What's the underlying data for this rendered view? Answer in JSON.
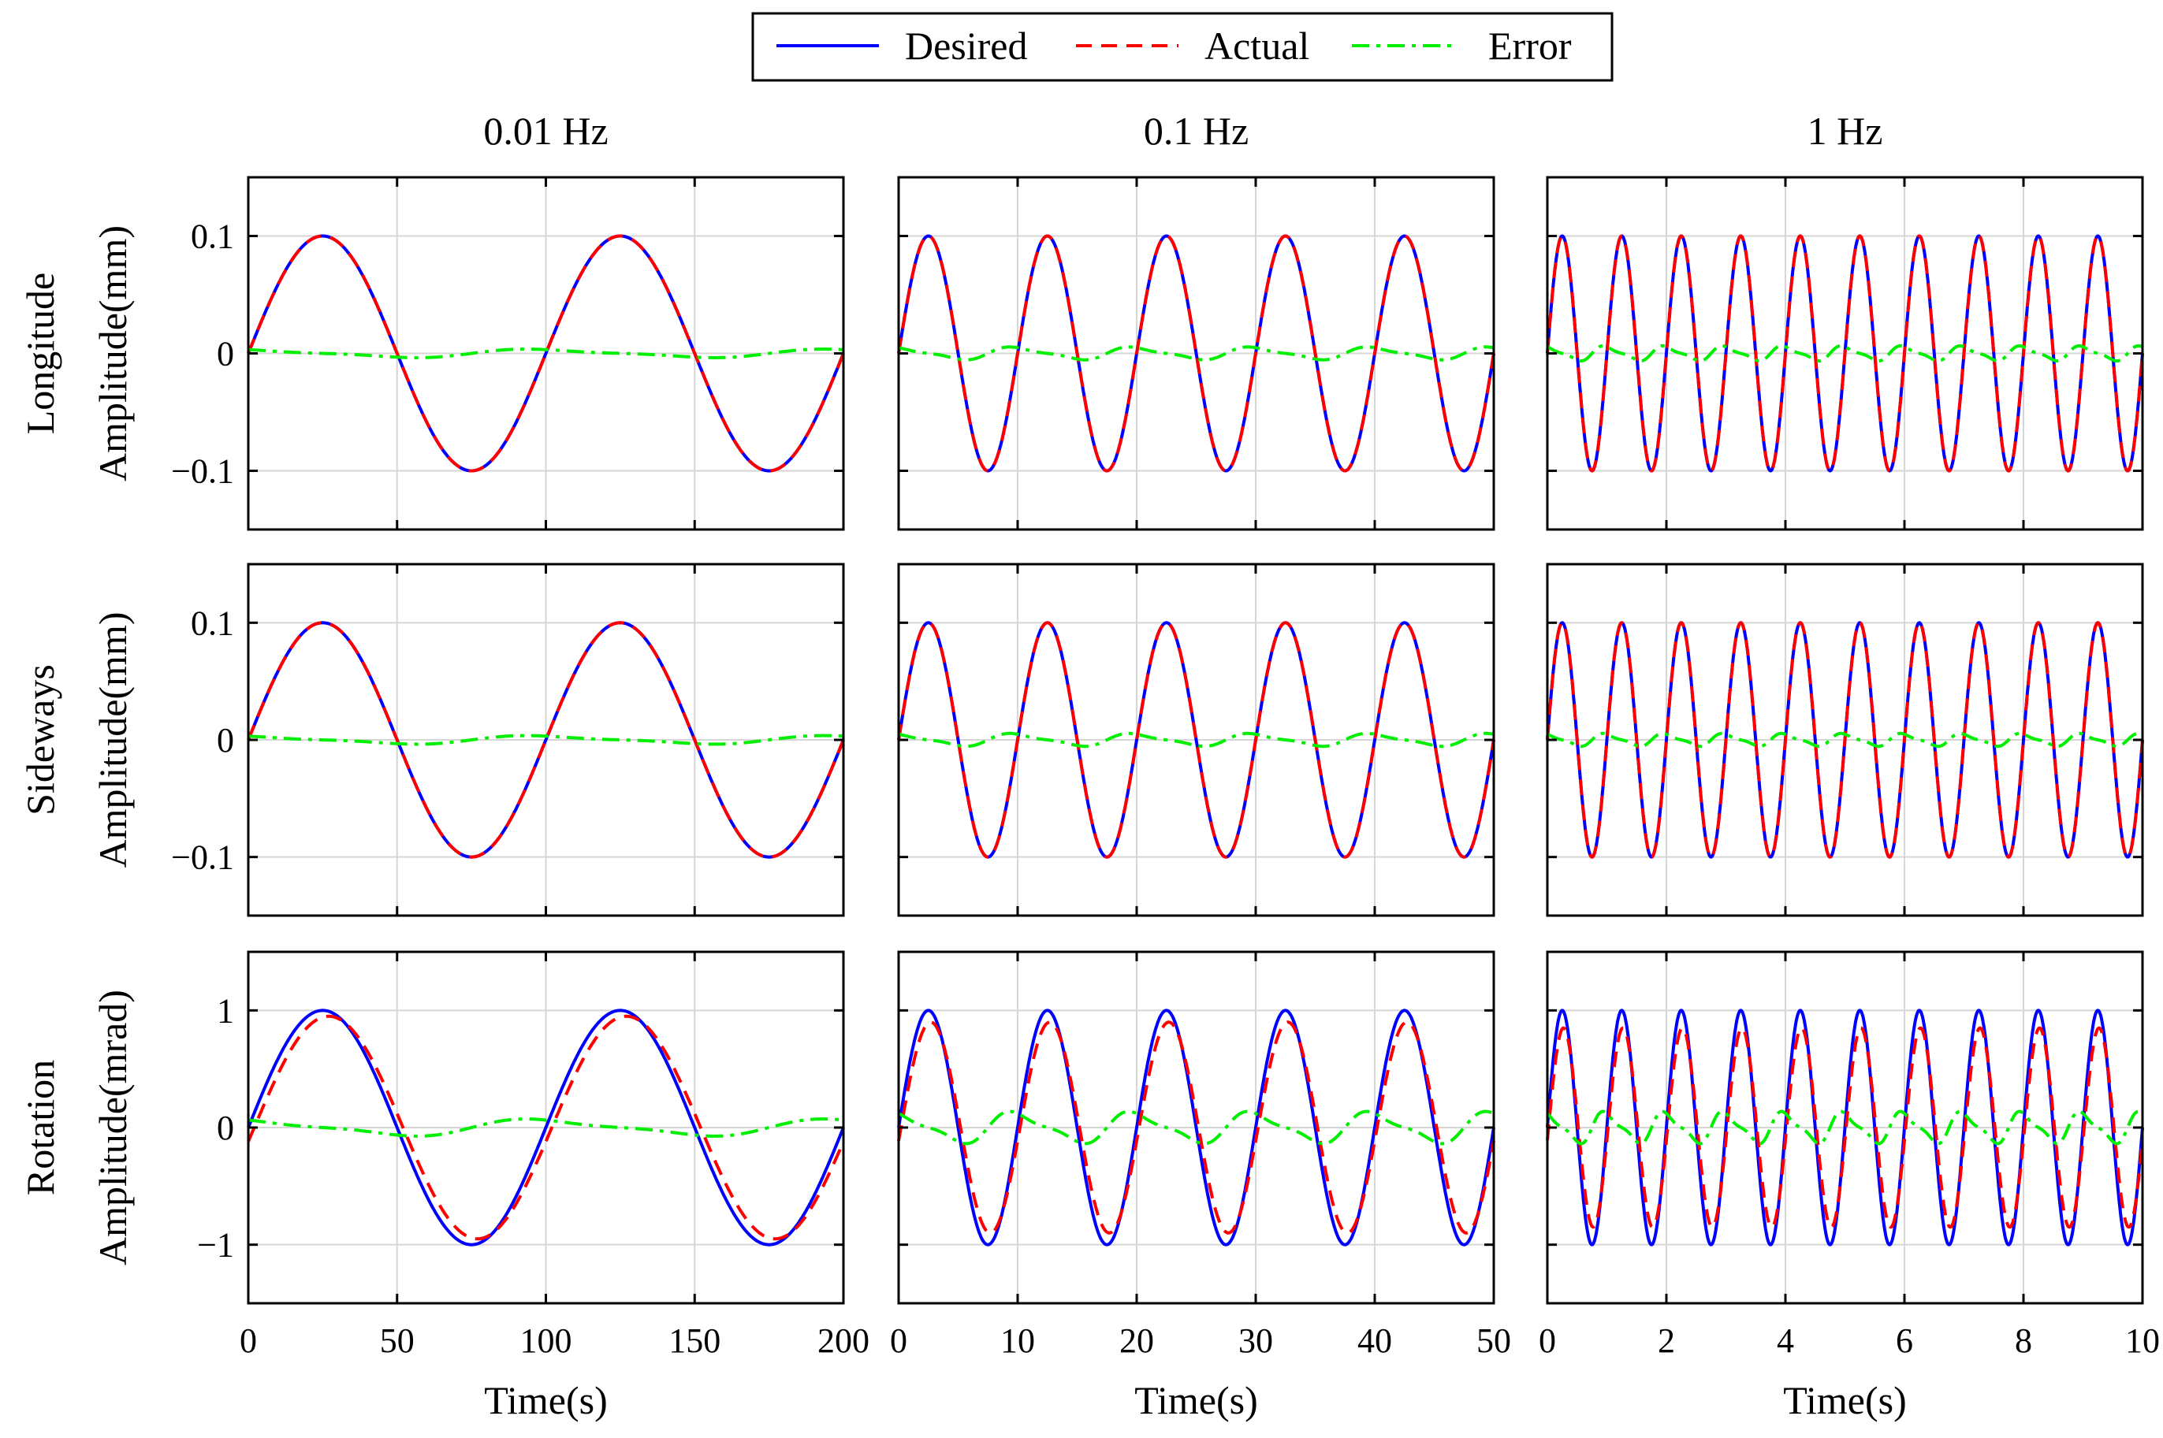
{
  "legend": {
    "items": [
      {
        "label": "Desired",
        "color": "#0000ff",
        "style": "solid"
      },
      {
        "label": "Actual",
        "color": "#ff0000",
        "style": "dashed"
      },
      {
        "label": "Error",
        "color": "#00ee00",
        "style": "dashdot"
      }
    ]
  },
  "chart_data": {
    "type": "line",
    "columns": [
      {
        "title": "0.01 Hz",
        "freq_hz": 0.01,
        "xlim": [
          0,
          200
        ],
        "xticks": [
          0,
          50,
          100,
          150,
          200
        ],
        "xlabel": "Time(s)"
      },
      {
        "title": "0.1 Hz",
        "freq_hz": 0.1,
        "xlim": [
          0,
          50
        ],
        "xticks": [
          0,
          10,
          20,
          30,
          40,
          50
        ],
        "xlabel": "Time(s)"
      },
      {
        "title": "1 Hz",
        "freq_hz": 1,
        "xlim": [
          0,
          10
        ],
        "xticks": [
          0,
          2,
          4,
          6,
          8,
          10
        ],
        "xlabel": "Time(s)"
      }
    ],
    "rows": [
      {
        "name": "Longitude",
        "ylabel": "Amplitude(mm)",
        "ylim": [
          -0.15,
          0.15
        ],
        "yticks": [
          -0.1,
          0,
          0.1
        ],
        "ytick_labels": [
          "−0.1",
          "0",
          "0.1"
        ],
        "amplitude": 0.1
      },
      {
        "name": "Sideways",
        "ylabel": "Amplitude(mm)",
        "ylim": [
          -0.15,
          0.15
        ],
        "yticks": [
          -0.1,
          0,
          0.1
        ],
        "ytick_labels": [
          "−0.1",
          "0",
          "0.1"
        ],
        "amplitude": 0.1
      },
      {
        "name": "Rotation",
        "ylabel": "Amplitude(mrad)",
        "ylim": [
          -1.5,
          1.5
        ],
        "yticks": [
          -1,
          0,
          1
        ],
        "ytick_labels": [
          "−1",
          "0",
          "1"
        ],
        "amplitude": 1
      }
    ],
    "series": [
      {
        "name": "Desired",
        "waveform": "sine",
        "amplitude_scale": 1.0,
        "phase_lag_cycles": 0.0
      },
      {
        "name": "Actual",
        "waveform": "sine",
        "amplitude_scale": [
          [
            1.0,
            1.0,
            1.0
          ],
          [
            1.0,
            1.0,
            1.0
          ],
          [
            0.95,
            0.9,
            0.85
          ]
        ],
        "phase_lag_cycles": [
          [
            0.0,
            0.0,
            0.0
          ],
          [
            0.0,
            0.0,
            0.0
          ],
          [
            0.02,
            0.02,
            0.02
          ]
        ]
      },
      {
        "name": "Error",
        "waveform": "difference",
        "peak": [
          [
            0.004,
            0.006,
            0.007
          ],
          [
            0.004,
            0.006,
            0.006
          ],
          [
            0.08,
            0.15,
            0.15
          ]
        ]
      }
    ]
  }
}
